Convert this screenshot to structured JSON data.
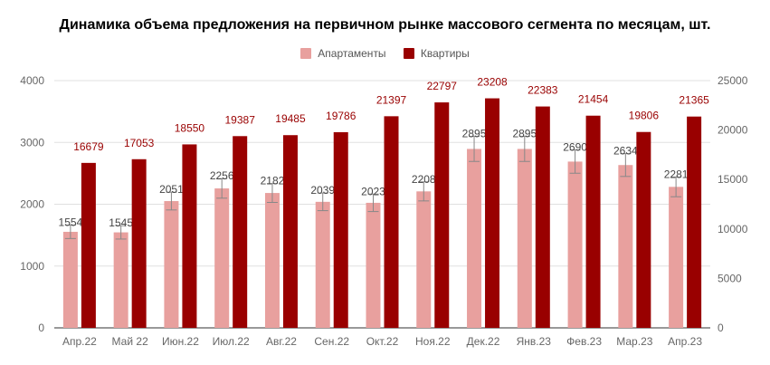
{
  "title": "Динамика объема предложения на первичном рынке массового сегмента по месяцам, шт.",
  "colors": {
    "apartments": "#e8a09e",
    "flats": "#990000",
    "flats_label": "#990000",
    "grid": "#e0e0e0",
    "axis_text": "#666666",
    "error_bar": "#888888"
  },
  "legend": [
    {
      "name": "Апартаменты",
      "color": "#e8a09e"
    },
    {
      "name": "Квартиры",
      "color": "#990000"
    }
  ],
  "chart_data": {
    "type": "bar",
    "categories": [
      "Апр.22",
      "Май 22",
      "Июн.22",
      "Июл.22",
      "Авг.22",
      "Сен.22",
      "Окт.22",
      "Ноя.22",
      "Дек.22",
      "Янв.23",
      "Фев.23",
      "Мар.23",
      "Апр.23"
    ],
    "series": [
      {
        "name": "Апартаменты",
        "axis": "left",
        "error_bars": true,
        "values": [
          1554,
          1545,
          2051,
          2256,
          2182,
          2039,
          2023,
          2208,
          2895,
          2895,
          2690,
          2634,
          2281
        ]
      },
      {
        "name": "Квартиры",
        "axis": "right",
        "values": [
          16679,
          17053,
          18550,
          19387,
          19485,
          19786,
          21397,
          22797,
          23208,
          22383,
          21454,
          19806,
          21365
        ]
      }
    ],
    "left_axis": {
      "ylim": [
        0,
        4000
      ],
      "ticks": [
        0,
        1000,
        2000,
        3000,
        4000
      ]
    },
    "right_axis": {
      "ylim": [
        0,
        25000
      ],
      "ticks": [
        0,
        5000,
        10000,
        15000,
        20000,
        25000
      ]
    },
    "grid": true,
    "legend_position": "top"
  }
}
